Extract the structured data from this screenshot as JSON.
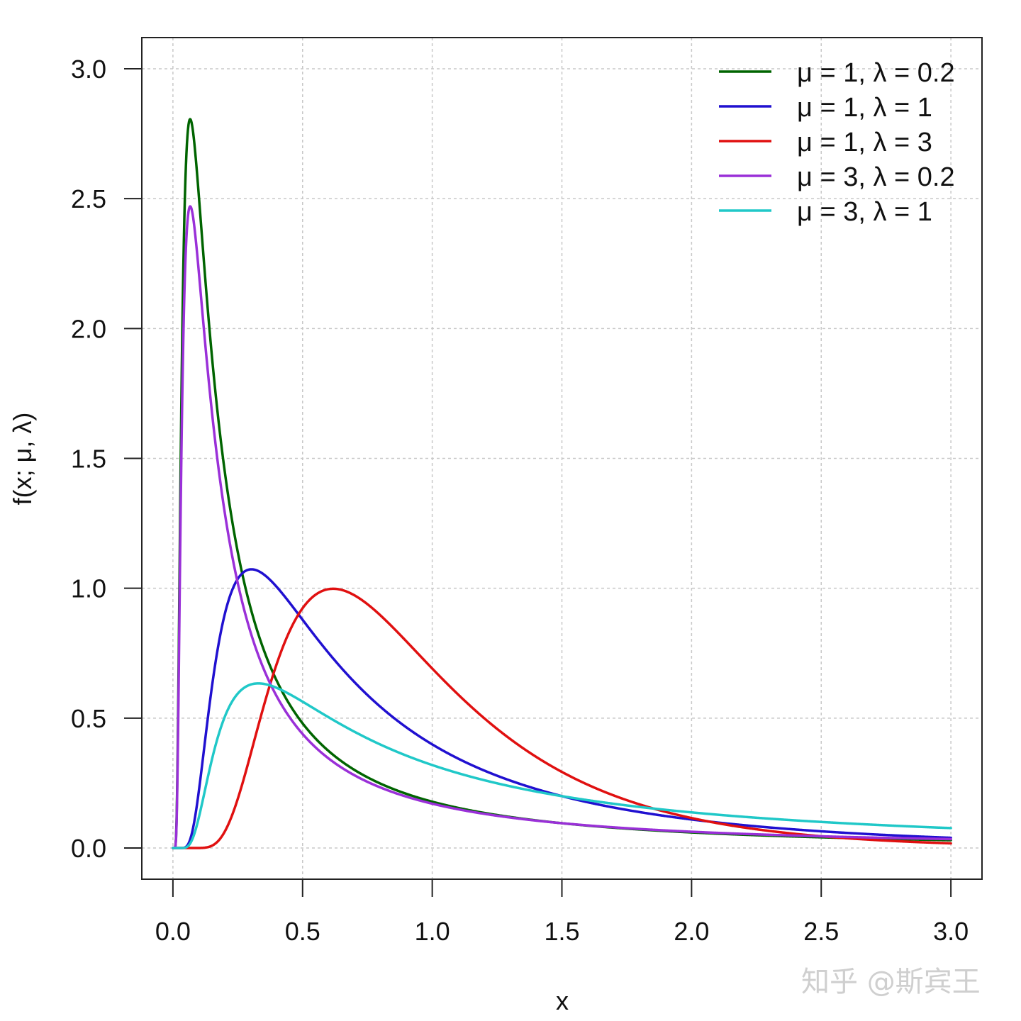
{
  "chart_data": {
    "type": "line",
    "xlabel": "x",
    "ylabel": "f(x;  μ, λ)",
    "xlim": [
      -0.12,
      3.12
    ],
    "ylim": [
      -0.12,
      3.12
    ],
    "x_ticks": [
      0.0,
      0.5,
      1.0,
      1.5,
      2.0,
      2.5,
      3.0
    ],
    "x_tick_labels": [
      "0.0",
      "0.5",
      "1.0",
      "1.5",
      "2.0",
      "2.5",
      "3.0"
    ],
    "y_ticks": [
      0.0,
      0.5,
      1.0,
      1.5,
      2.0,
      2.5,
      3.0
    ],
    "y_tick_labels": [
      "0.0",
      "0.5",
      "1.0",
      "1.5",
      "2.0",
      "2.5",
      "3.0"
    ],
    "grid": true,
    "legend_position": "top-right",
    "x_range": [
      0.0,
      3.0
    ],
    "series": [
      {
        "name": "μ = 1, λ = 0.2",
        "mu": 1,
        "lambda": 0.2,
        "color": "#006400"
      },
      {
        "name": "μ = 1, λ = 1",
        "mu": 1,
        "lambda": 1,
        "color": "#2010d0"
      },
      {
        "name": "μ = 1, λ = 3",
        "mu": 1,
        "lambda": 3,
        "color": "#e01010"
      },
      {
        "name": "μ = 3, λ = 0.2",
        "mu": 3,
        "lambda": 0.2,
        "color": "#9a30d8"
      },
      {
        "name": "μ = 3, λ = 1",
        "mu": 3,
        "lambda": 1,
        "color": "#20c8c8"
      }
    ]
  },
  "watermark": "知乎 @斯宾王"
}
